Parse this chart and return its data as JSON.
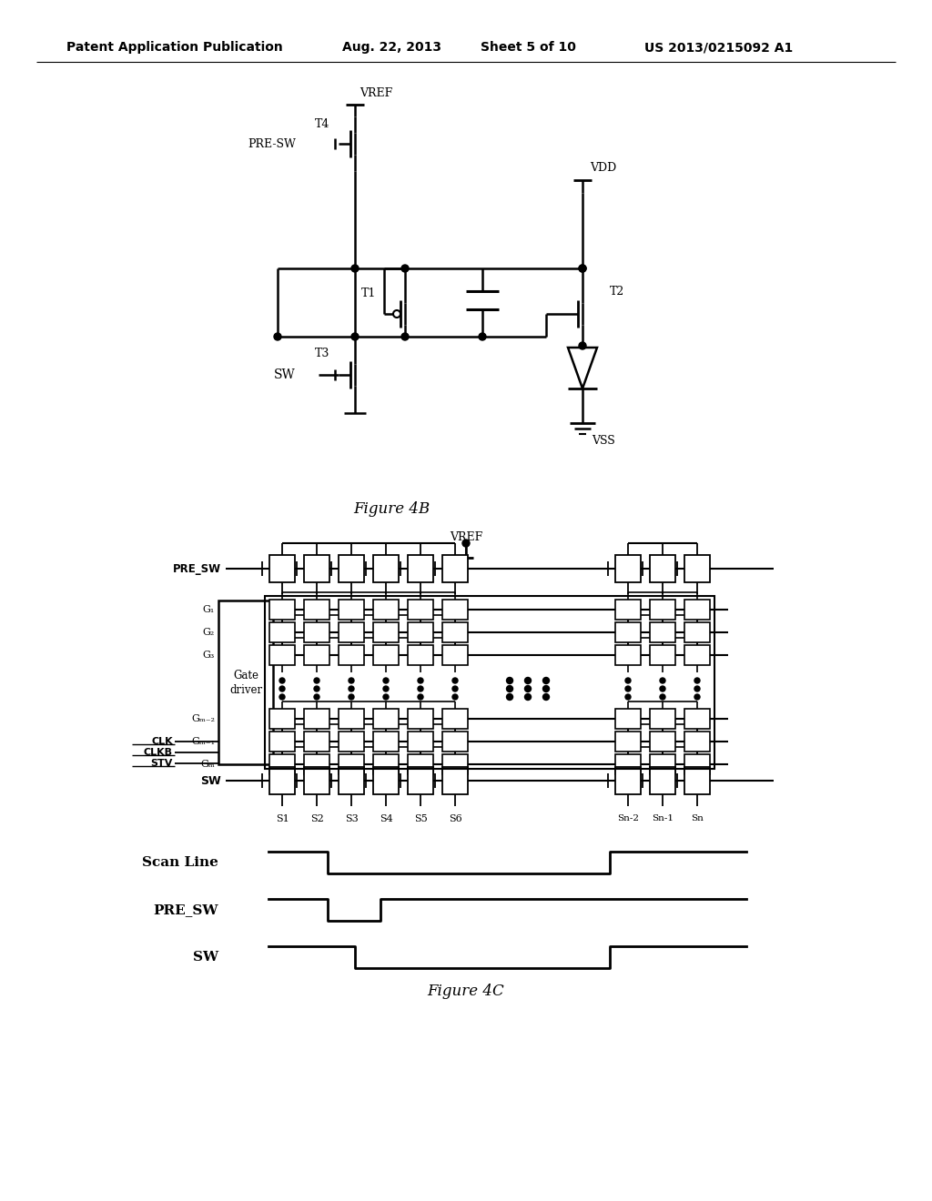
{
  "bg_color": "#ffffff",
  "header_text": "Patent Application Publication",
  "header_date": "Aug. 22, 2013",
  "header_sheet": "Sheet 5 of 10",
  "header_patent": "US 2013/0215092 A1",
  "fig4b_caption": "Figure 4B",
  "fig4c_caption": "Figure 4C",
  "line_color": "#000000",
  "text_color": "#000000"
}
